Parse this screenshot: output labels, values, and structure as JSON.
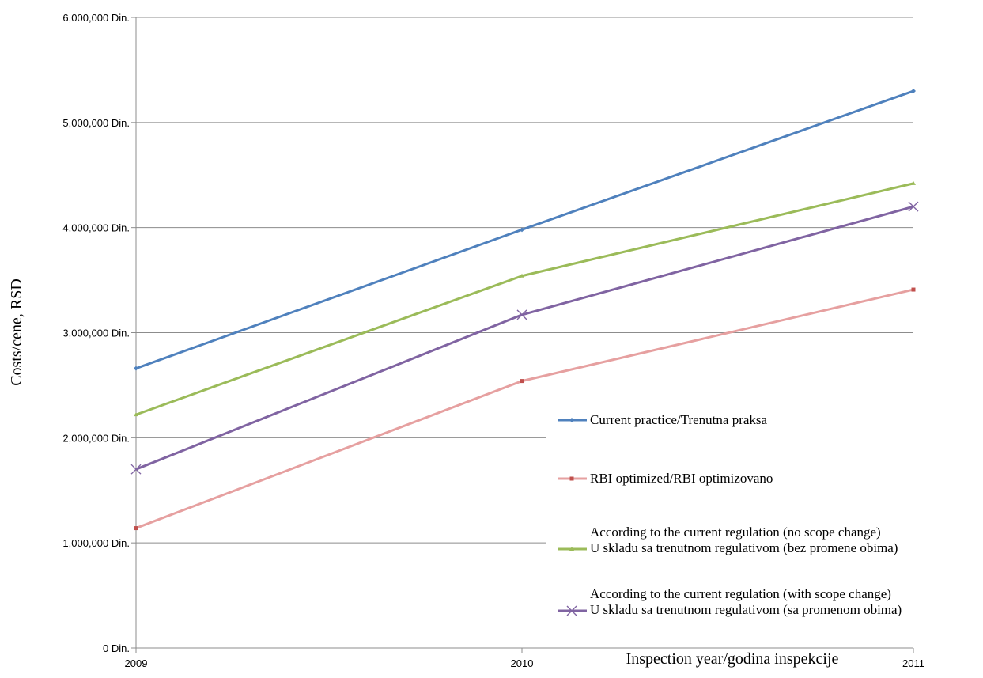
{
  "chart_data": {
    "type": "line",
    "title": "",
    "xlabel": "Inspection year/godina inspekcije",
    "ylabel": "Costs/cene, RSD",
    "categories": [
      "2009",
      "2010",
      "2011"
    ],
    "ylim": [
      0,
      6000000
    ],
    "y_ticks": [
      {
        "value": 0,
        "label": "0 Din."
      },
      {
        "value": 1000000,
        "label": "1,000,000 Din."
      },
      {
        "value": 2000000,
        "label": "2,000,000 Din."
      },
      {
        "value": 3000000,
        "label": "3,000,000 Din."
      },
      {
        "value": 4000000,
        "label": "4,000,000 Din."
      },
      {
        "value": 5000000,
        "label": "5,000,000 Din."
      },
      {
        "value": 6000000,
        "label": "6,000,000 Din."
      }
    ],
    "grid": true,
    "legend_position": "right",
    "series": [
      {
        "name": "Current practice/Trenutna praksa",
        "name_lines": [
          "Current practice/Trenutna praksa"
        ],
        "values": [
          2660000,
          3980000,
          5300000
        ],
        "color": "#4F81BD",
        "marker": "diamond"
      },
      {
        "name": "RBI optimized/RBI optimizovano",
        "name_lines": [
          "RBI optimized/RBI optimizovano"
        ],
        "values": [
          1140000,
          2540000,
          3410000
        ],
        "color": "#E6A0A0",
        "marker_color": "#C0504D",
        "marker": "square"
      },
      {
        "name": "According to the current regulation (no scope change) U skladu sa trenutnom regulativom (bez promene obima)",
        "name_lines": [
          "According to the current regulation (no scope change)",
          "U skladu sa trenutnom regulativom (bez promene obima)"
        ],
        "values": [
          2220000,
          3540000,
          4420000
        ],
        "color": "#9BBB59",
        "marker": "triangle"
      },
      {
        "name": "According to the current regulation (with scope change) U skladu sa trenutnom regulativom (sa promenom obima)",
        "name_lines": [
          "According to the current regulation (with scope change)",
          "U skladu sa trenutnom regulativom (sa promenom obima)"
        ],
        "values": [
          1700000,
          3170000,
          4200000
        ],
        "color": "#8064A2",
        "marker": "x"
      }
    ]
  }
}
